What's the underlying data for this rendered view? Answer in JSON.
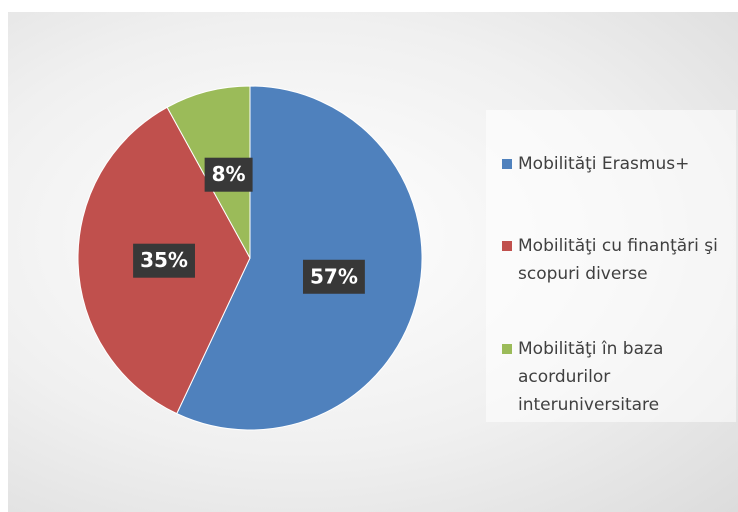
{
  "chart_data": {
    "type": "pie",
    "categories": [
      "Mobilităţi Erasmus+",
      "Mobilităţi cu finanţări şi scopuri diverse",
      "Mobilităţi în baza acordurilor interuniversitare"
    ],
    "values": [
      57,
      35,
      8
    ],
    "value_labels": [
      "57%",
      "35%",
      "8%"
    ],
    "colors": [
      "#4f81bd",
      "#c0504d",
      "#9bbb59"
    ],
    "legend": "right"
  }
}
